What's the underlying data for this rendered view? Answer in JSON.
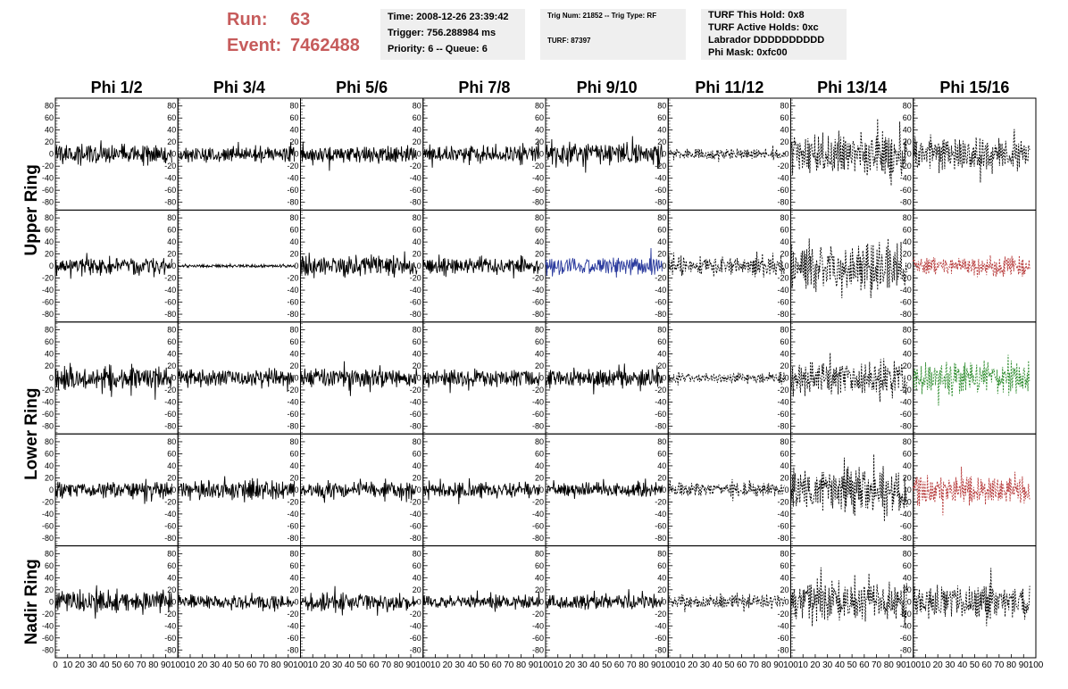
{
  "header": {
    "run_label": "Run:",
    "run_value": "63",
    "event_label": "Event:",
    "event_value": "7462488"
  },
  "info_box_1": {
    "time": "Time: 2008-12-26 23:39:42",
    "trigger": "Trigger: 756.288984 ms",
    "priority": "Priority: 6 -- Queue: 6"
  },
  "info_box_2": {
    "trig": "Trig Num: 21852 -- Trig Type: RF",
    "turf": "TURF: 87397"
  },
  "info_box_3": {
    "hold": "TURF This Hold: 0x8",
    "active": "TURF Active Holds: 0xc",
    "labrador": "Labrador DDDDDDDDDD",
    "mask": "Phi Mask: 0xfc00"
  },
  "chart_data": {
    "type": "line",
    "columns": [
      "Phi 1/2",
      "Phi 3/4",
      "Phi 5/6",
      "Phi 7/8",
      "Phi 9/10",
      "Phi 11/12",
      "Phi 13/14",
      "Phi 15/16"
    ],
    "row_groups": [
      {
        "label": "Upper Ring",
        "rows": [
          0,
          1
        ]
      },
      {
        "label": "Lower Ring",
        "rows": [
          2,
          3
        ]
      },
      {
        "label": "Nadir Ring",
        "rows": [
          4
        ]
      }
    ],
    "xlim": [
      0,
      100
    ],
    "ylim": [
      -90,
      90
    ],
    "y_ticks": [
      80,
      60,
      40,
      20,
      0,
      -20,
      -40,
      -60,
      -80
    ],
    "x_tick_labels": [
      "0",
      "10",
      "20",
      "30",
      "40",
      "50",
      "60",
      "70",
      "80",
      "90",
      "100"
    ],
    "x_range_samples": [
      0,
      95
    ],
    "colors": {
      "black": "#000000",
      "blue": "#2b3b9e",
      "red": "#b53535",
      "green": "#2a8a2a"
    },
    "panels": [
      [
        {
          "amp": 14,
          "color": "black",
          "dashed": false
        },
        {
          "amp": 11,
          "color": "black",
          "dashed": false
        },
        {
          "amp": 11,
          "color": "black",
          "dashed": false
        },
        {
          "amp": 12,
          "color": "black",
          "dashed": false
        },
        {
          "amp": 15,
          "color": "black",
          "dashed": false
        },
        {
          "amp": 7,
          "color": "black",
          "dashed": true
        },
        {
          "amp": 30,
          "color": "black",
          "dashed": true
        },
        {
          "amp": 24,
          "color": "black",
          "dashed": true
        }
      ],
      [
        {
          "amp": 12,
          "color": "black",
          "dashed": false
        },
        {
          "amp": 2,
          "color": "black",
          "dashed": false
        },
        {
          "amp": 14,
          "color": "black",
          "dashed": false
        },
        {
          "amp": 11,
          "color": "black",
          "dashed": false
        },
        {
          "amp": 12,
          "color": "blue",
          "dashed": false
        },
        {
          "amp": 13,
          "color": "black",
          "dashed": true
        },
        {
          "amp": 35,
          "color": "black",
          "dashed": true
        },
        {
          "amp": 14,
          "color": "red",
          "dashed": true
        }
      ],
      [
        {
          "amp": 15,
          "color": "black",
          "dashed": false
        },
        {
          "amp": 12,
          "color": "black",
          "dashed": false
        },
        {
          "amp": 13,
          "color": "black",
          "dashed": false
        },
        {
          "amp": 12,
          "color": "black",
          "dashed": false
        },
        {
          "amp": 12,
          "color": "black",
          "dashed": false
        },
        {
          "amp": 7,
          "color": "black",
          "dashed": true
        },
        {
          "amp": 24,
          "color": "black",
          "dashed": true
        },
        {
          "amp": 22,
          "color": "green",
          "dashed": true
        }
      ],
      [
        {
          "amp": 12,
          "color": "black",
          "dashed": false
        },
        {
          "amp": 13,
          "color": "black",
          "dashed": false
        },
        {
          "amp": 12,
          "color": "black",
          "dashed": false
        },
        {
          "amp": 11,
          "color": "black",
          "dashed": false
        },
        {
          "amp": 9,
          "color": "black",
          "dashed": false
        },
        {
          "amp": 10,
          "color": "black",
          "dashed": true
        },
        {
          "amp": 33,
          "color": "black",
          "dashed": true
        },
        {
          "amp": 20,
          "color": "red",
          "dashed": true
        }
      ],
      [
        {
          "amp": 15,
          "color": "black",
          "dashed": false
        },
        {
          "amp": 9,
          "color": "black",
          "dashed": false
        },
        {
          "amp": 12,
          "color": "black",
          "dashed": false
        },
        {
          "amp": 9,
          "color": "black",
          "dashed": false
        },
        {
          "amp": 10,
          "color": "black",
          "dashed": false
        },
        {
          "amp": 10,
          "color": "black",
          "dashed": true
        },
        {
          "amp": 27,
          "color": "black",
          "dashed": true
        },
        {
          "amp": 24,
          "color": "black",
          "dashed": true
        }
      ]
    ]
  }
}
